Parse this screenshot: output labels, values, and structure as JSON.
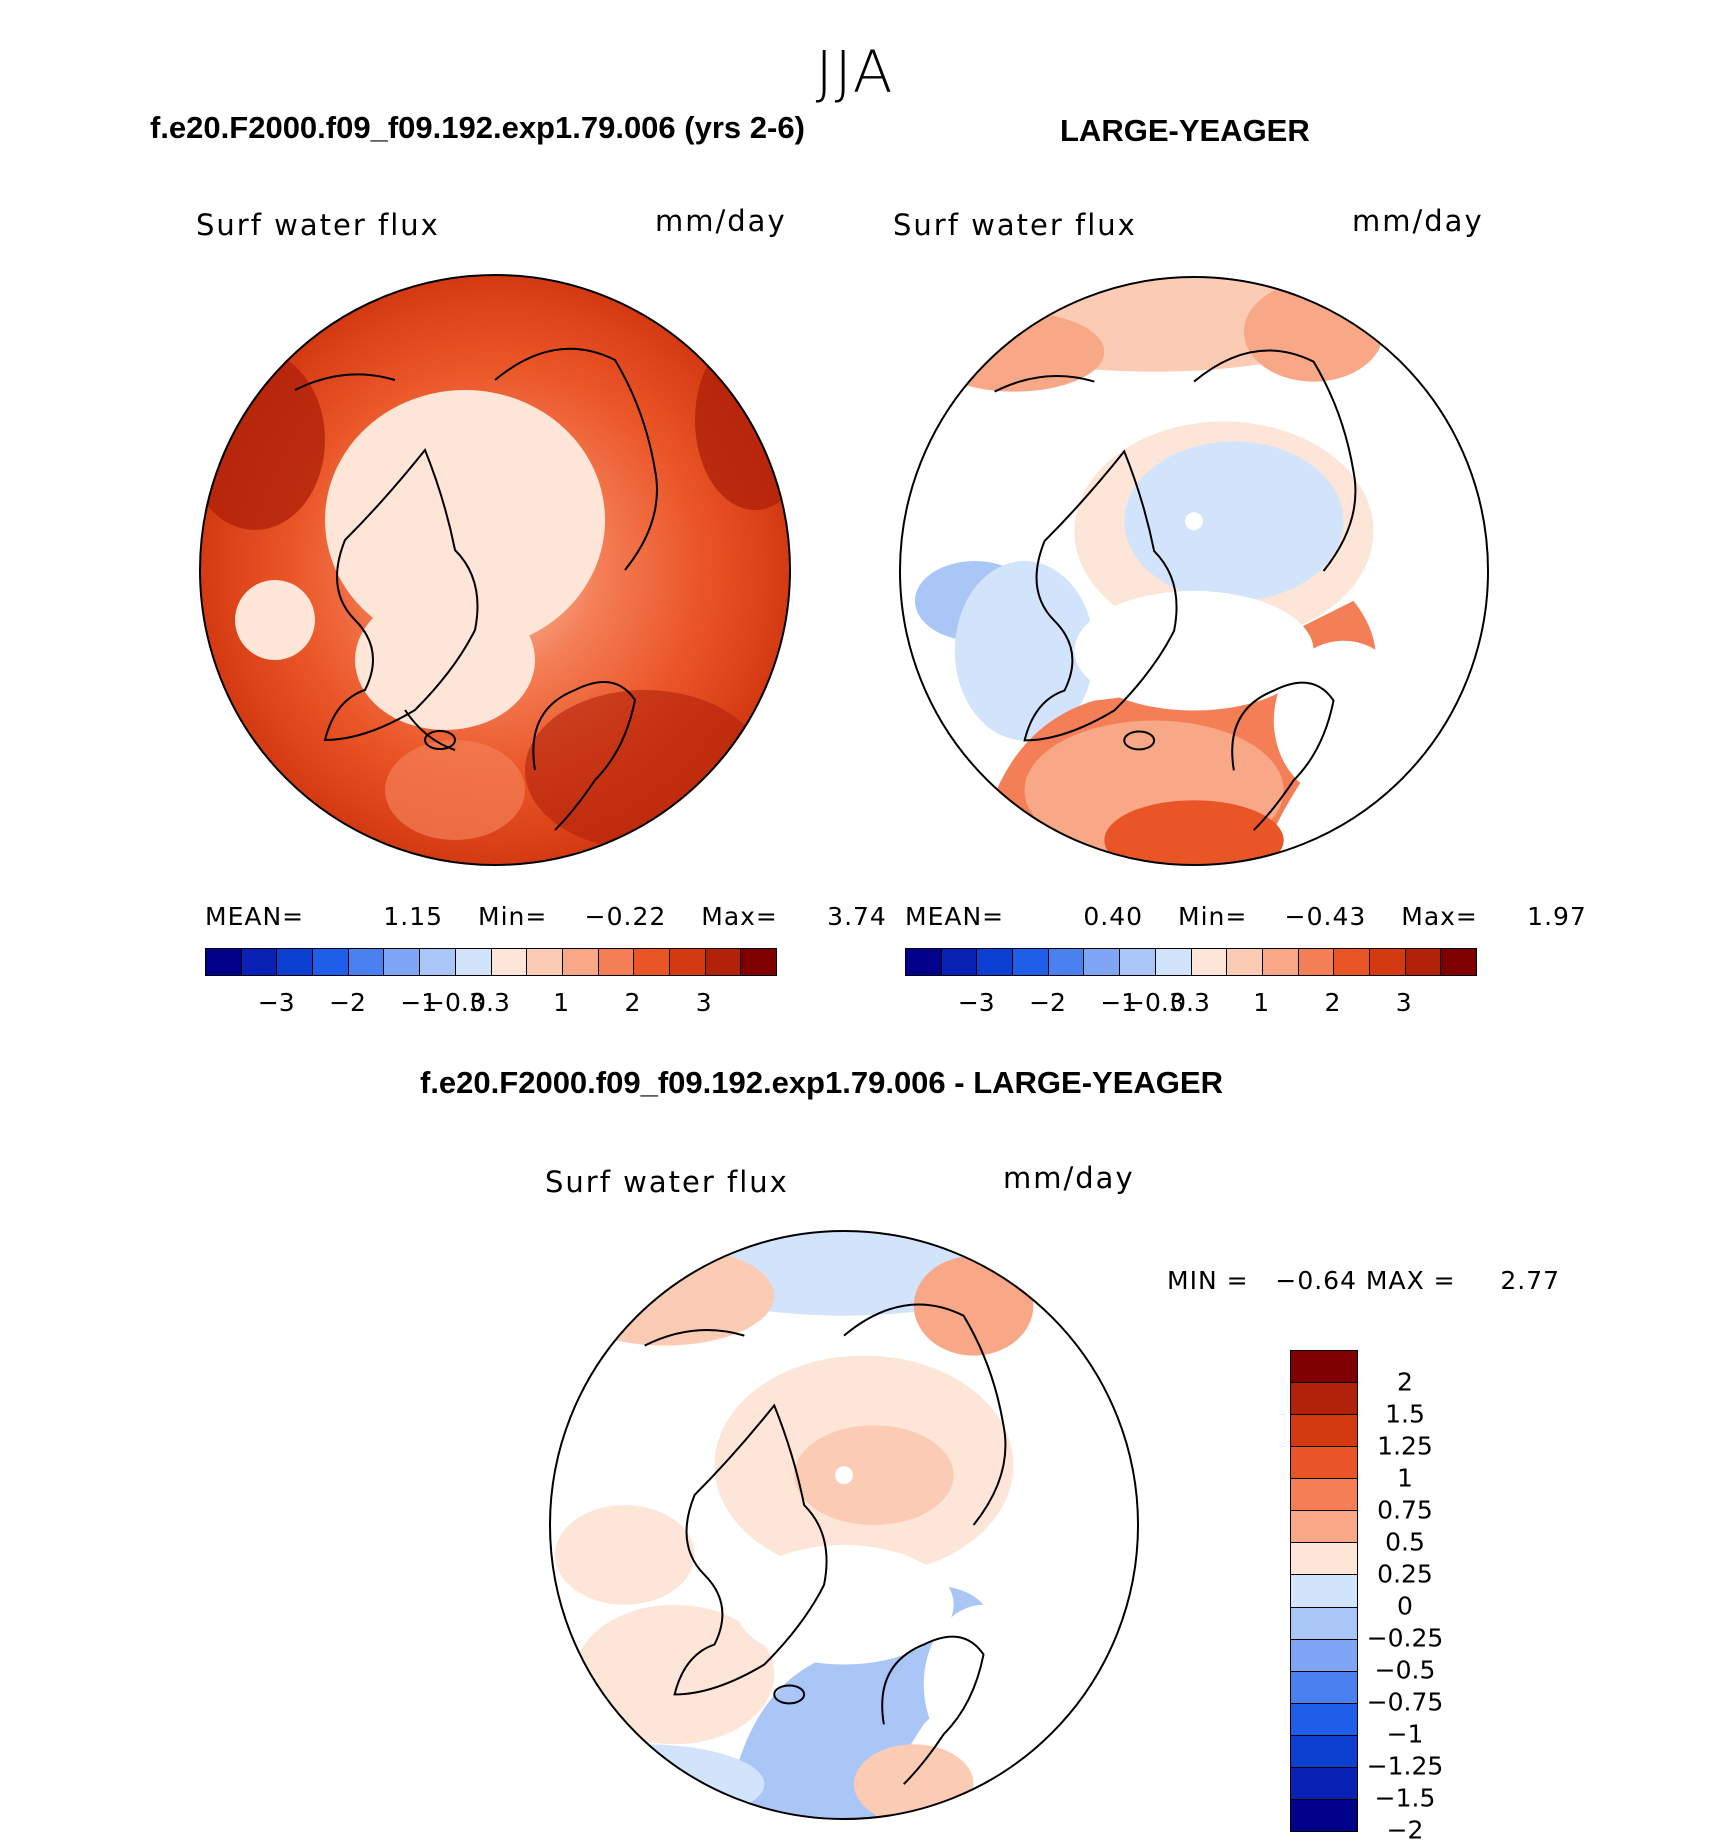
{
  "season": "JJA",
  "panels": {
    "left": {
      "case_title": "f.e20.F2000.f09_f09.192.exp1.79.006 (yrs 2-6)",
      "var_title": "Surf water flux",
      "units": "mm/day",
      "mean_label": "MEAN=",
      "mean": "1.15",
      "min_label": "Min=",
      "min": "−0.22",
      "max_label": "Max=",
      "max": "3.74"
    },
    "right": {
      "case_title": "LARGE-YEAGER",
      "var_title": "Surf water flux",
      "units": "mm/day",
      "mean_label": "MEAN=",
      "mean": "0.40",
      "min_label": "Min=",
      "min": "−0.43",
      "max_label": "Max=",
      "max": "1.97"
    },
    "diff": {
      "case_title": "f.e20.F2000.f09_f09.192.exp1.79.006 - LARGE-YEAGER",
      "var_title": "Surf water flux",
      "units": "mm/day",
      "minmax_text": "MIN =   −0.64 MAX =     2.77"
    }
  },
  "colorbar_top": {
    "colors": [
      "#00008b",
      "#0a22b4",
      "#0d3fd0",
      "#1f5ee8",
      "#4a80f0",
      "#7ea6f4",
      "#aac6f7",
      "#d2e4fb",
      "#fde6d8",
      "#fbcbb3",
      "#f8a886",
      "#f47f57",
      "#ea5527",
      "#d43a12",
      "#b0220a",
      "#7e0000"
    ],
    "tick_labels": [
      "−3",
      "−2",
      "−1",
      "−0.3",
      "0.3",
      "1",
      "2",
      "3"
    ]
  },
  "colorbar_diff": {
    "colors": [
      "#7e0000",
      "#b0220a",
      "#d43a12",
      "#ea5527",
      "#f47f57",
      "#f8a886",
      "#fde6d8",
      "#d2e4fb",
      "#aac6f7",
      "#7ea6f4",
      "#4a80f0",
      "#1f5ee8",
      "#0d3fd0",
      "#0a22b4",
      "#00008b"
    ],
    "tick_labels": [
      "2",
      "1.5",
      "1.25",
      "1",
      "0.75",
      "0.5",
      "0.25",
      "0",
      "−0.25",
      "−0.5",
      "−0.75",
      "−1",
      "−1.25",
      "−1.5",
      "−2"
    ]
  }
}
